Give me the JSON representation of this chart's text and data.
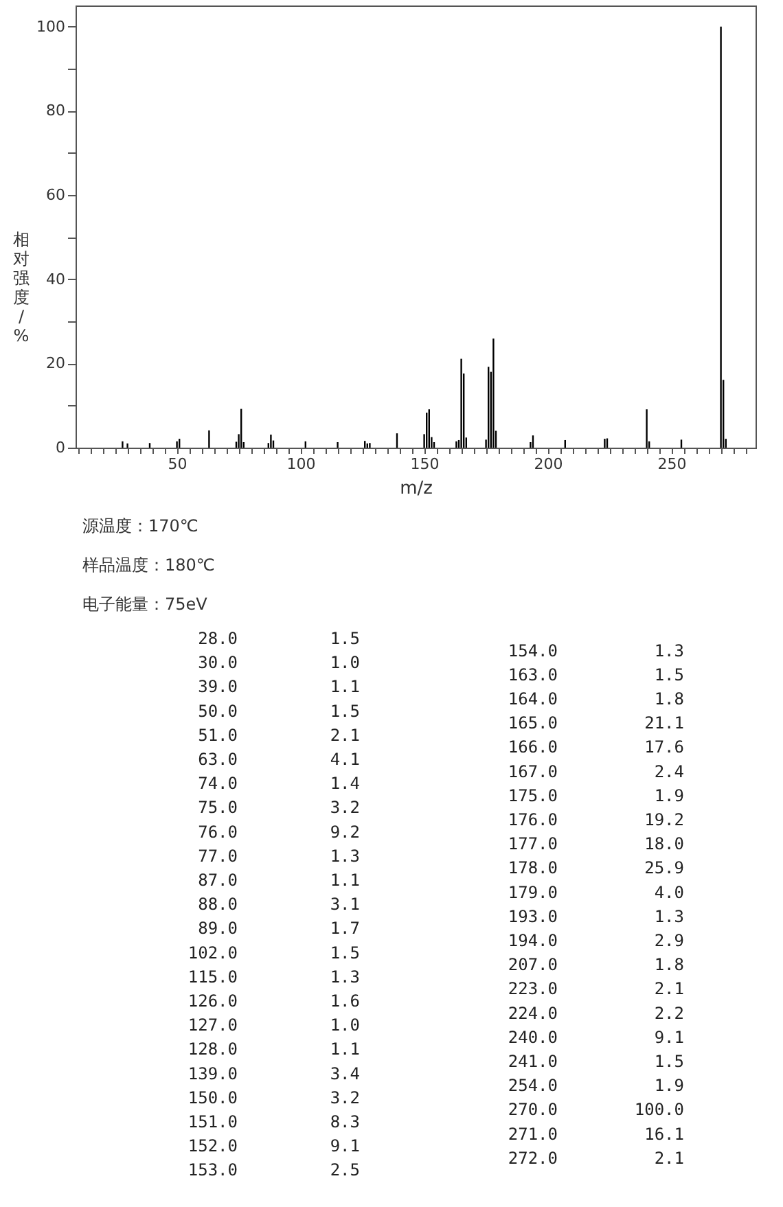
{
  "chart_data": [
    {
      "type": "bar",
      "xlabel": "m/z",
      "ylabel": "相对强度/%",
      "color": "#000000",
      "x": [
        28,
        30,
        39,
        50,
        51,
        63,
        74,
        75,
        76,
        77,
        87,
        88,
        89,
        102,
        115,
        126,
        127,
        128,
        139,
        150,
        151,
        152,
        153,
        154,
        163,
        164,
        165,
        166,
        167,
        175,
        176,
        177,
        178,
        179,
        193,
        194,
        207,
        223,
        224,
        240,
        241,
        254,
        270,
        271,
        272
      ],
      "values": [
        1.5,
        1.0,
        1.1,
        1.5,
        2.1,
        4.1,
        1.4,
        3.2,
        9.2,
        1.3,
        1.1,
        3.1,
        1.7,
        1.5,
        1.3,
        1.6,
        1.0,
        1.1,
        3.4,
        3.2,
        8.3,
        9.1,
        2.5,
        1.3,
        1.5,
        1.8,
        21.1,
        17.6,
        2.4,
        1.9,
        19.2,
        18.0,
        25.9,
        4.0,
        1.3,
        2.9,
        1.8,
        2.1,
        2.2,
        9.1,
        1.5,
        1.9,
        100.0,
        16.1,
        2.1
      ],
      "xlim": [
        9,
        284
      ],
      "xticks": [
        {
          "value": 10,
          "label": null
        },
        {
          "value": 15,
          "label": null
        },
        {
          "value": 20,
          "label": null
        },
        {
          "value": 25,
          "label": null
        },
        {
          "value": 30,
          "label": null
        },
        {
          "value": 35,
          "label": null
        },
        {
          "value": 40,
          "label": null
        },
        {
          "value": 45,
          "label": null
        },
        50,
        {
          "value": 55,
          "label": null
        },
        {
          "value": 60,
          "label": null
        },
        {
          "value": 65,
          "label": null
        },
        {
          "value": 70,
          "label": null
        },
        {
          "value": 75,
          "label": null
        },
        {
          "value": 80,
          "label": null
        },
        {
          "value": 85,
          "label": null
        },
        {
          "value": 90,
          "label": null
        },
        {
          "value": 95,
          "label": null
        },
        100,
        {
          "value": 105,
          "label": null
        },
        {
          "value": 110,
          "label": null
        },
        {
          "value": 115,
          "label": null
        },
        {
          "value": 120,
          "label": null
        },
        {
          "value": 125,
          "label": null
        },
        {
          "value": 130,
          "label": null
        },
        {
          "value": 135,
          "label": null
        },
        {
          "value": 140,
          "label": null
        },
        {
          "value": 145,
          "label": null
        },
        150,
        {
          "value": 155,
          "label": null
        },
        {
          "value": 160,
          "label": null
        },
        {
          "value": 165,
          "label": null
        },
        {
          "value": 170,
          "label": null
        },
        {
          "value": 175,
          "label": null
        },
        {
          "value": 180,
          "label": null
        },
        {
          "value": 185,
          "label": null
        },
        {
          "value": 190,
          "label": null
        },
        {
          "value": 195,
          "label": null
        },
        200,
        {
          "value": 205,
          "label": null
        },
        {
          "value": 210,
          "label": null
        },
        {
          "value": 215,
          "label": null
        },
        {
          "value": 220,
          "label": null
        },
        {
          "value": 225,
          "label": null
        },
        {
          "value": 230,
          "label": null
        },
        {
          "value": 235,
          "label": null
        },
        {
          "value": 240,
          "label": null
        },
        {
          "value": 245,
          "label": null
        },
        250,
        {
          "value": 255,
          "label": null
        },
        {
          "value": 260,
          "label": null
        },
        {
          "value": 265,
          "label": null
        },
        {
          "value": 270,
          "label": null
        },
        {
          "value": 275,
          "label": null
        },
        {
          "value": 280,
          "label": null
        }
      ],
      "ylim": [
        0,
        105
      ],
      "yticks": [
        0,
        {
          "value": 10,
          "label": null
        },
        20,
        {
          "value": 30,
          "label": null
        },
        40,
        {
          "value": 50,
          "label": null
        },
        60,
        {
          "value": 70,
          "label": null
        },
        80,
        {
          "value": 90,
          "label": null
        },
        100
      ],
      "annotations": [
        "源温度：170℃",
        "样品温度：180℃",
        "电子能量：75eV"
      ]
    },
    {
      "type": "other",
      "value_labels": [
        "1.5",
        "1.0",
        "1.1",
        "1.5",
        "2.1",
        "4.1",
        "1.4",
        "3.2",
        "9.2",
        "1.3",
        "1.1",
        "3.1",
        "1.7",
        "1.5",
        "1.3",
        "1.6",
        "1.0",
        "1.1",
        "3.4",
        "3.2",
        "8.3",
        "9.1",
        "2.5",
        "1.3",
        "1.5",
        "1.8",
        "21.1",
        "17.6",
        "2.4",
        "1.9",
        "19.2",
        "18.0",
        "25.9",
        "4.0",
        "1.3",
        "2.9",
        "1.8",
        "2.1",
        "2.2",
        "9.1",
        "1.5",
        "1.9",
        "100.0",
        "16.1",
        "2.1"
      ],
      "categories": [
        "28.0",
        "30.0",
        "39.0",
        "50.0",
        "51.0",
        "63.0",
        "74.0",
        "75.0",
        "76.0",
        "77.0",
        "87.0",
        "88.0",
        "89.0",
        "102.0",
        "115.0",
        "126.0",
        "127.0",
        "128.0",
        "139.0",
        "150.0",
        "151.0",
        "152.0",
        "153.0",
        "154.0",
        "163.0",
        "164.0",
        "165.0",
        "166.0",
        "167.0",
        "175.0",
        "176.0",
        "177.0",
        "178.0",
        "179.0",
        "193.0",
        "194.0",
        "207.0",
        "223.0",
        "224.0",
        "240.0",
        "241.0",
        "254.0",
        "270.0",
        "271.0",
        "272.0"
      ],
      "values": [
        1.5,
        1.0,
        1.1,
        1.5,
        2.1,
        4.1,
        1.4,
        3.2,
        9.2,
        1.3,
        1.1,
        3.1,
        1.7,
        1.5,
        1.3,
        1.6,
        1.0,
        1.1,
        3.4,
        3.2,
        8.3,
        9.1,
        2.5,
        1.3,
        1.5,
        1.8,
        21.1,
        17.6,
        2.4,
        1.9,
        19.2,
        18.0,
        25.9,
        4.0,
        1.3,
        2.9,
        1.8,
        2.1,
        2.2,
        9.1,
        1.5,
        1.9,
        100.0,
        16.1,
        2.1
      ]
    }
  ]
}
